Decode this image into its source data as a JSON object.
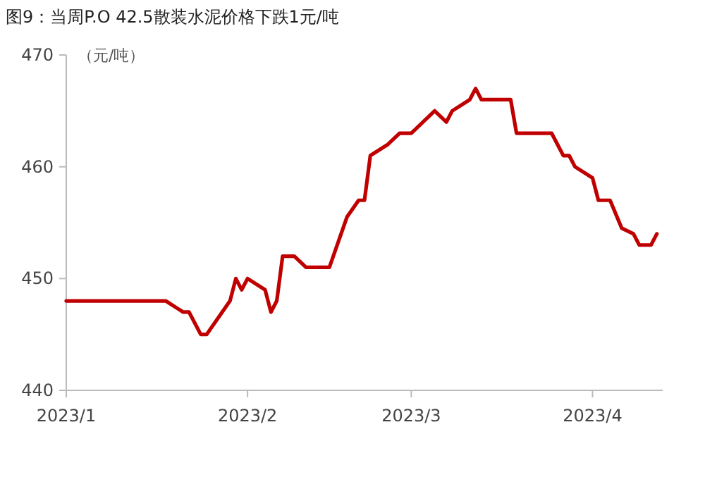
{
  "chart_data": {
    "type": "line",
    "title": "图9：当周P.O 42.5散装水泥价格下跌1元/吨",
    "ylabel": "（元/吨）",
    "x": [
      "2023-01-01",
      "2023-01-18",
      "2023-01-21",
      "2023-01-22",
      "2023-01-24",
      "2023-01-25",
      "2023-01-29",
      "2023-01-30",
      "2023-01-31",
      "2023-02-01",
      "2023-02-04",
      "2023-02-05",
      "2023-02-06",
      "2023-02-07",
      "2023-02-09",
      "2023-02-11",
      "2023-02-15",
      "2023-02-18",
      "2023-02-20",
      "2023-02-21",
      "2023-02-22",
      "2023-02-25",
      "2023-02-27",
      "2023-03-01",
      "2023-03-05",
      "2023-03-07",
      "2023-03-08",
      "2023-03-11",
      "2023-03-12",
      "2023-03-13",
      "2023-03-18",
      "2023-03-19",
      "2023-03-25",
      "2023-03-27",
      "2023-03-28",
      "2023-03-29",
      "2023-04-01",
      "2023-04-02",
      "2023-04-04",
      "2023-04-06",
      "2023-04-08",
      "2023-04-09",
      "2023-04-11",
      "2023-04-12"
    ],
    "series": [
      {
        "color": "#c00000",
        "values": [
          448,
          448,
          447,
          447,
          445,
          445,
          448,
          450,
          449,
          450,
          449,
          447,
          448,
          452,
          452,
          451,
          451,
          455.5,
          457,
          457,
          461,
          462,
          463,
          463,
          465,
          464,
          465,
          466,
          467,
          466,
          466,
          463,
          463,
          461,
          461,
          460,
          459,
          457,
          457,
          454.5,
          454,
          453,
          453,
          454
        ]
      }
    ],
    "xlim": [
      "2023-01-01",
      "2023-04-13"
    ],
    "ylim": [
      440,
      470
    ],
    "xticks": [
      {
        "value": "2023-01-01",
        "label": "2023/1"
      },
      {
        "value": "2023-02-01",
        "label": "2023/2"
      },
      {
        "value": "2023-03-01",
        "label": "2023/3"
      },
      {
        "value": "2023-04-01",
        "label": "2023/4"
      }
    ],
    "yticks": [
      440,
      450,
      460,
      470
    ],
    "grid": false
  }
}
